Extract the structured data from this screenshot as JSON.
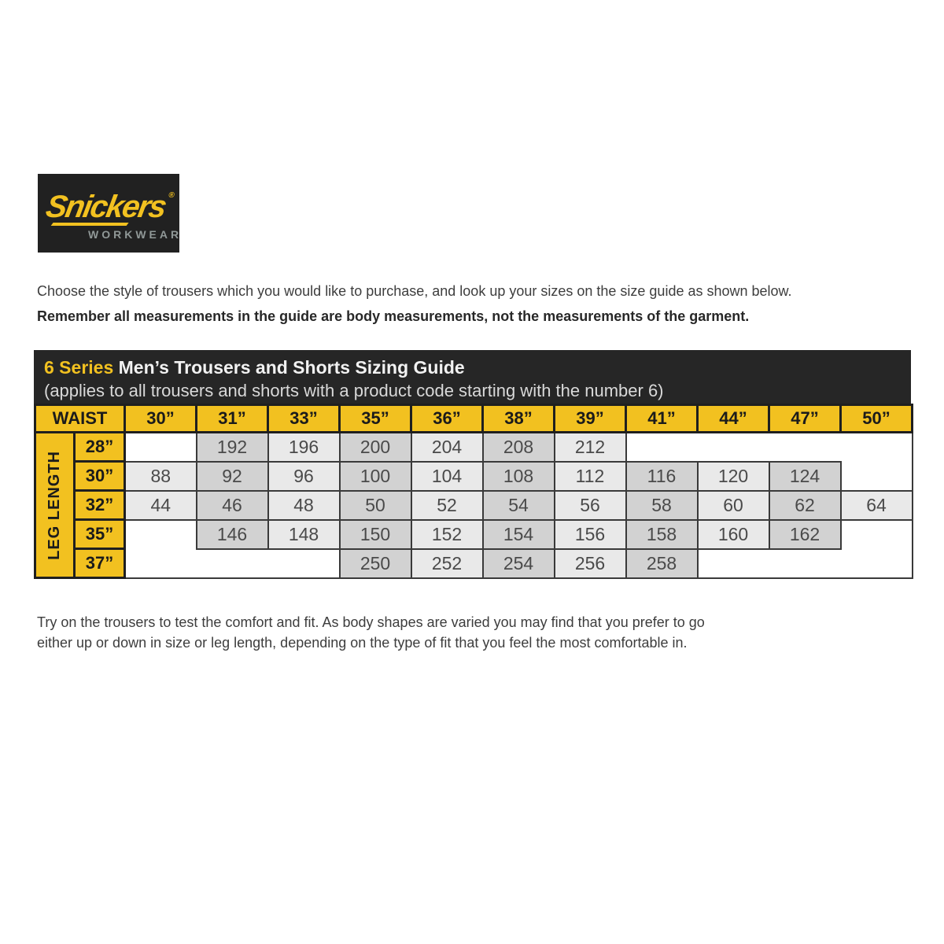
{
  "logo": {
    "brand": "Snickers",
    "registered_mark": "®",
    "subbrand": "WORKWEAR"
  },
  "intro": {
    "line1": "Choose the style of trousers which you would like to purchase, and look up your sizes on the size guide as shown below.",
    "line2": "Remember all measurements in the guide are body measurements, not the measurements of the garment."
  },
  "guide": {
    "series": "6 Series",
    "title": "Men’s Trousers and Shorts Sizing Guide",
    "subtitle": "(applies to all trousers and shorts with a product code starting with the number 6)",
    "waist_label": "WAIST",
    "leg_label": "LEG LENGTH",
    "columns": [
      "30”",
      "31”",
      "33”",
      "35”",
      "36”",
      "38”",
      "39”",
      "41”",
      "44”",
      "47”",
      "50”"
    ],
    "rows": [
      {
        "leg": "28”",
        "values": [
          null,
          192,
          196,
          200,
          204,
          208,
          212,
          null,
          null,
          null,
          null
        ]
      },
      {
        "leg": "30”",
        "values": [
          88,
          92,
          96,
          100,
          104,
          108,
          112,
          116,
          120,
          124,
          null
        ]
      },
      {
        "leg": "32”",
        "values": [
          44,
          46,
          48,
          50,
          52,
          54,
          56,
          58,
          60,
          62,
          64
        ]
      },
      {
        "leg": "35”",
        "values": [
          null,
          146,
          148,
          150,
          152,
          154,
          156,
          158,
          160,
          162,
          null
        ]
      },
      {
        "leg": "37”",
        "values": [
          null,
          null,
          null,
          250,
          252,
          254,
          256,
          258,
          null,
          null,
          null
        ]
      }
    ]
  },
  "footer": {
    "line1": "Try on the trousers to test the comfort and fit. As body shapes are varied you may find that you prefer to go",
    "line2": "either up or down in size or leg length, depending on the type of fit that you feel the most comfortable in."
  },
  "colors": {
    "brand_yellow": "#F2C120",
    "header_bar_bg": "#262626",
    "logo_bg": "#212121",
    "cell_light": "#e9e9e9",
    "cell_medium": "#d2d2d2",
    "cell_border": "#3a3a3a",
    "yellow_cell_border": "#1f1f1f",
    "workwear_gray": "#909897"
  }
}
